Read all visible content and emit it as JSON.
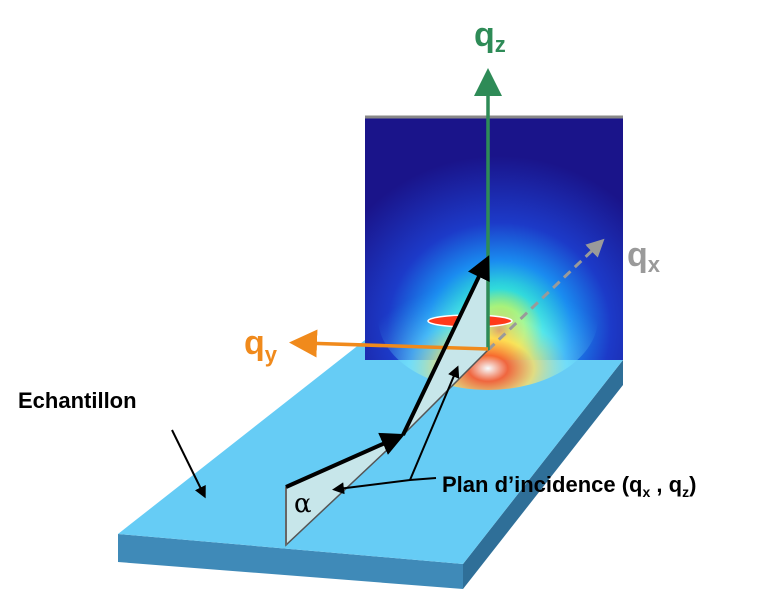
{
  "labels": {
    "qz": {
      "main": "q",
      "sub": "z"
    },
    "qx": {
      "main": "q",
      "sub": "x"
    },
    "qy": {
      "main": "q",
      "sub": "y"
    },
    "sample": "Echantillon",
    "alpha": "α",
    "plane": {
      "prefix": "Plan d’incidence (q",
      "sub1": "x",
      "mid": " , q",
      "sub2": "z",
      "suffix": ")"
    }
  },
  "colors": {
    "qz_axis": "#2e8b57",
    "qy_axis": "#f08a1c",
    "qx_axis": "#9a9a9a",
    "sample_top": "#66ccf5",
    "sample_front": "#3f8ab8",
    "sample_side": "#2f6f98",
    "detector_bg": "#1c1a8c",
    "plane_fill": "#c7e6ea"
  }
}
